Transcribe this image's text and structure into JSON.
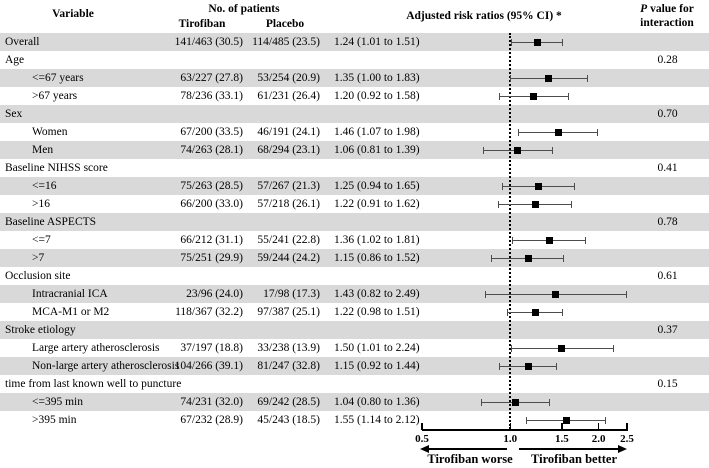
{
  "header": {
    "variable": "Variable",
    "no_of_patients": "No. of patients",
    "tirofiban": "Tirofiban",
    "placebo": "Placebo",
    "risk_ratios": "Adjusted risk ratios (95% CI) *",
    "p_italic": "P",
    "p_rest": "value for",
    "p_value_line2": "interaction"
  },
  "chart_data": {
    "type": "forest",
    "x_scale": "log",
    "xlim": [
      0.5,
      2.5
    ],
    "x_ticks": [
      0.5,
      1.0,
      1.5,
      2.0,
      2.5
    ],
    "x_tick_labels": [
      "0.5",
      "1.0",
      "1.5",
      "2.0",
      "2.5"
    ],
    "reference_line": 1.0,
    "axis_labels": {
      "left_arrow": "Tirofiban worse",
      "right_arrow": "Tirofiban better"
    },
    "rows": [
      {
        "label": "Overall",
        "indent": false,
        "tirofiban": "141/463 (30.5)",
        "placebo": "114/485 (23.5)",
        "ci": "1.24 (1.01 to 1.51)",
        "rr": 1.24,
        "low": 1.01,
        "high": 1.51,
        "p": "",
        "shaded": true
      },
      {
        "label": "Age",
        "indent": false,
        "tirofiban": "",
        "placebo": "",
        "ci": "",
        "p": "0.28",
        "shaded": false
      },
      {
        "label": "<=67 years",
        "indent": true,
        "tirofiban": "63/227 (27.8)",
        "placebo": "53/254 (20.9)",
        "ci": "1.35 (1.00 to 1.83)",
        "rr": 1.35,
        "low": 1.0,
        "high": 1.83,
        "p": "",
        "shaded": true
      },
      {
        "label": ">67 years",
        "indent": true,
        "tirofiban": "78/236 (33.1)",
        "placebo": "61/231 (26.4)",
        "ci": "1.20 (0.92 to 1.58)",
        "rr": 1.2,
        "low": 0.92,
        "high": 1.58,
        "p": "",
        "shaded": false
      },
      {
        "label": "Sex",
        "indent": false,
        "tirofiban": "",
        "placebo": "",
        "ci": "",
        "p": "0.70",
        "shaded": true
      },
      {
        "label": "Women",
        "indent": true,
        "tirofiban": "67/200 (33.5)",
        "placebo": "46/191 (24.1)",
        "ci": "1.46 (1.07 to 1.98)",
        "rr": 1.46,
        "low": 1.07,
        "high": 1.98,
        "p": "",
        "shaded": false
      },
      {
        "label": "Men",
        "indent": true,
        "tirofiban": "74/263 (28.1)",
        "placebo": "68/294 (23.1)",
        "ci": "1.06 (0.81 to 1.39)",
        "rr": 1.06,
        "low": 0.81,
        "high": 1.39,
        "p": "",
        "shaded": true
      },
      {
        "label": "Baseline NIHSS score",
        "indent": false,
        "tirofiban": "",
        "placebo": "",
        "ci": "",
        "p": "0.41",
        "shaded": false
      },
      {
        "label": "<=16",
        "indent": true,
        "tirofiban": "75/263 (28.5)",
        "placebo": "57/267 (21.3)",
        "ci": "1.25 (0.94 to 1.65)",
        "rr": 1.25,
        "low": 0.94,
        "high": 1.65,
        "p": "",
        "shaded": true
      },
      {
        "label": ">16",
        "indent": true,
        "tirofiban": "66/200 (33.0)",
        "placebo": "57/218 (26.1)",
        "ci": "1.22 (0.91 to 1.62)",
        "rr": 1.22,
        "low": 0.91,
        "high": 1.62,
        "p": "",
        "shaded": false
      },
      {
        "label": "Baseline ASPECTS",
        "indent": false,
        "tirofiban": "",
        "placebo": "",
        "ci": "",
        "p": "0.78",
        "shaded": true
      },
      {
        "label": "<=7",
        "indent": true,
        "tirofiban": "66/212 (31.1)",
        "placebo": "55/241 (22.8)",
        "ci": "1.36 (1.02 to 1.81)",
        "rr": 1.36,
        "low": 1.02,
        "high": 1.81,
        "p": "",
        "shaded": false
      },
      {
        "label": ">7",
        "indent": true,
        "tirofiban": "75/251 (29.9)",
        "placebo": "59/244 (24.2)",
        "ci": "1.15 (0.86 to 1.52)",
        "rr": 1.15,
        "low": 0.86,
        "high": 1.52,
        "p": "",
        "shaded": true
      },
      {
        "label": "Occlusion site",
        "indent": false,
        "tirofiban": "",
        "placebo": "",
        "ci": "",
        "p": "0.61",
        "shaded": false
      },
      {
        "label": "Intracranial ICA",
        "indent": true,
        "tirofiban": "23/96 (24.0)",
        "placebo": "17/98 (17.3)",
        "ci": "1.43 (0.82 to 2.49)",
        "rr": 1.43,
        "low": 0.82,
        "high": 2.49,
        "p": "",
        "shaded": true
      },
      {
        "label": "MCA-M1 or M2",
        "indent": true,
        "tirofiban": "118/367 (32.2)",
        "placebo": "97/387 (25.1)",
        "ci": "1.22 (0.98 to 1.51)",
        "rr": 1.22,
        "low": 0.98,
        "high": 1.51,
        "p": "",
        "shaded": false
      },
      {
        "label": "Stroke etiology",
        "indent": false,
        "tirofiban": "",
        "placebo": "",
        "ci": "",
        "p": "0.37",
        "shaded": true
      },
      {
        "label": "Large artery atherosclerosis",
        "indent": true,
        "tirofiban": "37/197 (18.8)",
        "placebo": "33/238 (13.9)",
        "ci": "1.50 (1.01 to 2.24)",
        "rr": 1.5,
        "low": 1.01,
        "high": 2.24,
        "p": "",
        "shaded": false
      },
      {
        "label": "Non-large artery atherosclerosis",
        "indent": true,
        "tirofiban": "104/266 (39.1)",
        "placebo": "81/247 (32.8)",
        "ci": "1.15 (0.92 to 1.44)",
        "rr": 1.15,
        "low": 0.92,
        "high": 1.44,
        "p": "",
        "shaded": true
      },
      {
        "label": "time from last known well to puncture",
        "indent": false,
        "tirofiban": "",
        "placebo": "",
        "ci": "",
        "p": "0.15",
        "shaded": false
      },
      {
        "label": "<=395 min",
        "indent": true,
        "tirofiban": "74/231 (32.0)",
        "placebo": "69/242 (28.5)",
        "ci": "1.04 (0.80 to 1.36)",
        "rr": 1.04,
        "low": 0.8,
        "high": 1.36,
        "p": "",
        "shaded": true
      },
      {
        "label": ">395 min",
        "indent": true,
        "tirofiban": "67/232 (28.9)",
        "placebo": "45/243 (18.5)",
        "ci": "1.55 (1.14 to 2.12)",
        "rr": 1.55,
        "low": 1.14,
        "high": 2.12,
        "p": "",
        "shaded": false
      }
    ]
  }
}
